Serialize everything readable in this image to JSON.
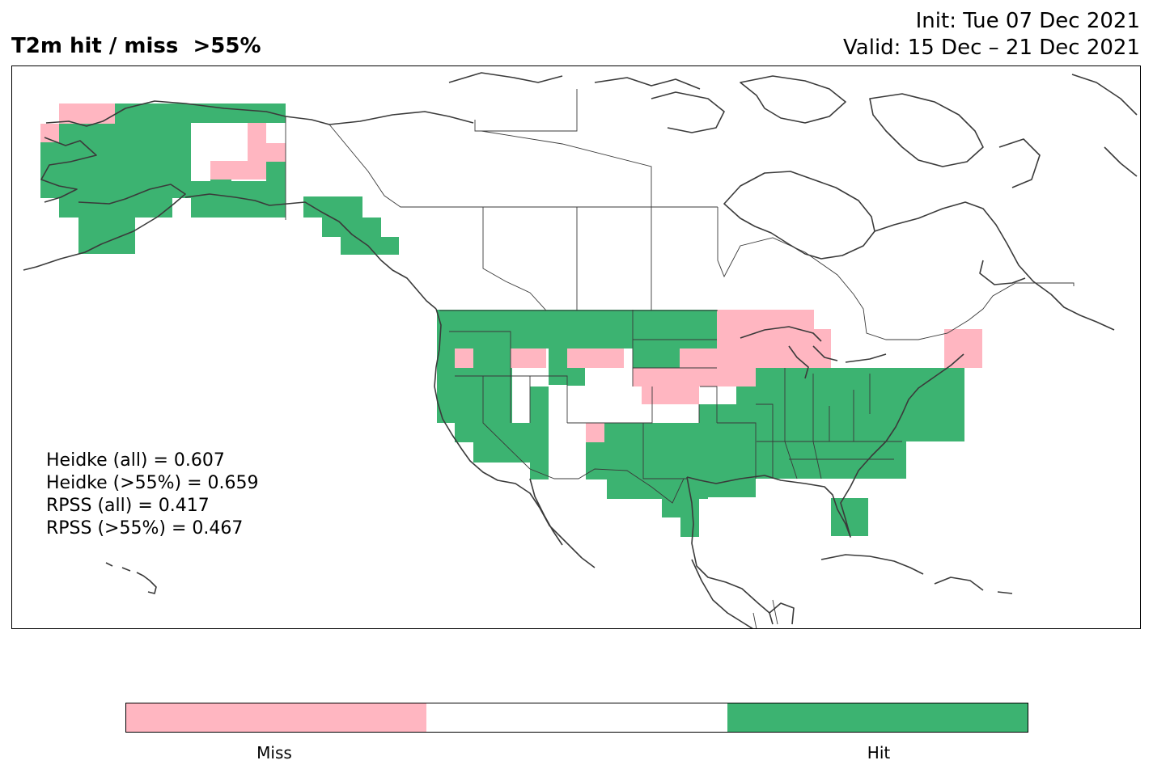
{
  "title": "T2m hit / miss  >55%",
  "init": "Init: Tue 07 Dec 2021",
  "valid": "Valid: 15 Dec – 21 Dec 2021",
  "scores": [
    "Heidke (all) = 0.607",
    "Heidke (>55%) = 0.659",
    "RPSS (all) = 0.417",
    "RPSS (>55%) = 0.467"
  ],
  "colors": {
    "miss": "#ffb6c1",
    "neutral": "#ffffff",
    "hit": "#3cb371",
    "coast": "#3a3a3a"
  },
  "colorbar": {
    "labels": [
      "Miss",
      "Hit"
    ]
  }
}
